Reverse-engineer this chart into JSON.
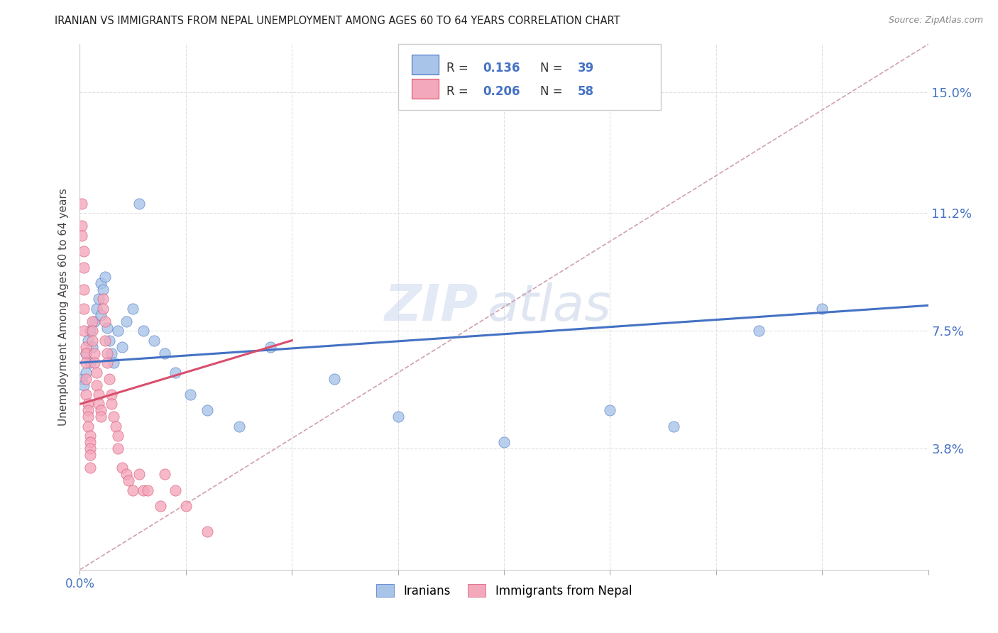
{
  "title": "IRANIAN VS IMMIGRANTS FROM NEPAL UNEMPLOYMENT AMONG AGES 60 TO 64 YEARS CORRELATION CHART",
  "source": "Source: ZipAtlas.com",
  "ylabel": "Unemployment Among Ages 60 to 64 years",
  "ytick_labels": [
    "15.0%",
    "11.2%",
    "7.5%",
    "3.8%"
  ],
  "ytick_values": [
    0.15,
    0.112,
    0.075,
    0.038
  ],
  "xmin": 0.0,
  "xmax": 0.4,
  "ymin": 0.0,
  "ymax": 0.165,
  "iranians_color": "#a8c4e8",
  "nepal_color": "#f4a8bc",
  "trend_iranians_color": "#4472c4",
  "trend_nepal_color": "#d94f6e",
  "ref_line_color": "#d0a0b0",
  "legend_iranians_label": "Iranians",
  "legend_nepal_label": "Immigrants from Nepal",
  "R_iranians": "0.136",
  "N_iranians": "39",
  "R_nepal": "0.206",
  "N_nepal": "58",
  "iranians_x": [
    0.001,
    0.002,
    0.003,
    0.003,
    0.004,
    0.005,
    0.005,
    0.006,
    0.007,
    0.008,
    0.009,
    0.01,
    0.01,
    0.011,
    0.012,
    0.013,
    0.014,
    0.015,
    0.016,
    0.018,
    0.02,
    0.022,
    0.025,
    0.028,
    0.03,
    0.035,
    0.04,
    0.045,
    0.052,
    0.06,
    0.075,
    0.09,
    0.12,
    0.15,
    0.2,
    0.25,
    0.28,
    0.32,
    0.35
  ],
  "iranians_y": [
    0.06,
    0.058,
    0.062,
    0.068,
    0.072,
    0.065,
    0.075,
    0.07,
    0.078,
    0.082,
    0.085,
    0.08,
    0.09,
    0.088,
    0.092,
    0.076,
    0.072,
    0.068,
    0.065,
    0.075,
    0.07,
    0.078,
    0.082,
    0.115,
    0.075,
    0.072,
    0.068,
    0.062,
    0.055,
    0.05,
    0.045,
    0.07,
    0.06,
    0.048,
    0.04,
    0.05,
    0.045,
    0.075,
    0.082
  ],
  "nepal_x": [
    0.001,
    0.001,
    0.001,
    0.002,
    0.002,
    0.002,
    0.002,
    0.002,
    0.003,
    0.003,
    0.003,
    0.003,
    0.003,
    0.004,
    0.004,
    0.004,
    0.004,
    0.005,
    0.005,
    0.005,
    0.005,
    0.005,
    0.006,
    0.006,
    0.006,
    0.007,
    0.007,
    0.008,
    0.008,
    0.009,
    0.009,
    0.01,
    0.01,
    0.011,
    0.011,
    0.012,
    0.012,
    0.013,
    0.013,
    0.014,
    0.015,
    0.015,
    0.016,
    0.017,
    0.018,
    0.018,
    0.02,
    0.022,
    0.023,
    0.025,
    0.028,
    0.03,
    0.032,
    0.038,
    0.04,
    0.045,
    0.05,
    0.06
  ],
  "nepal_y": [
    0.115,
    0.108,
    0.105,
    0.1,
    0.095,
    0.088,
    0.082,
    0.075,
    0.07,
    0.068,
    0.065,
    0.06,
    0.055,
    0.052,
    0.05,
    0.048,
    0.045,
    0.042,
    0.04,
    0.038,
    0.036,
    0.032,
    0.078,
    0.075,
    0.072,
    0.068,
    0.065,
    0.062,
    0.058,
    0.055,
    0.052,
    0.05,
    0.048,
    0.085,
    0.082,
    0.078,
    0.072,
    0.068,
    0.065,
    0.06,
    0.055,
    0.052,
    0.048,
    0.045,
    0.042,
    0.038,
    0.032,
    0.03,
    0.028,
    0.025,
    0.03,
    0.025,
    0.025,
    0.02,
    0.03,
    0.025,
    0.02,
    0.012
  ],
  "watermark_top": "ZIP",
  "watermark_bottom": "atlas",
  "background_color": "#ffffff",
  "grid_color": "#e0e0e0"
}
